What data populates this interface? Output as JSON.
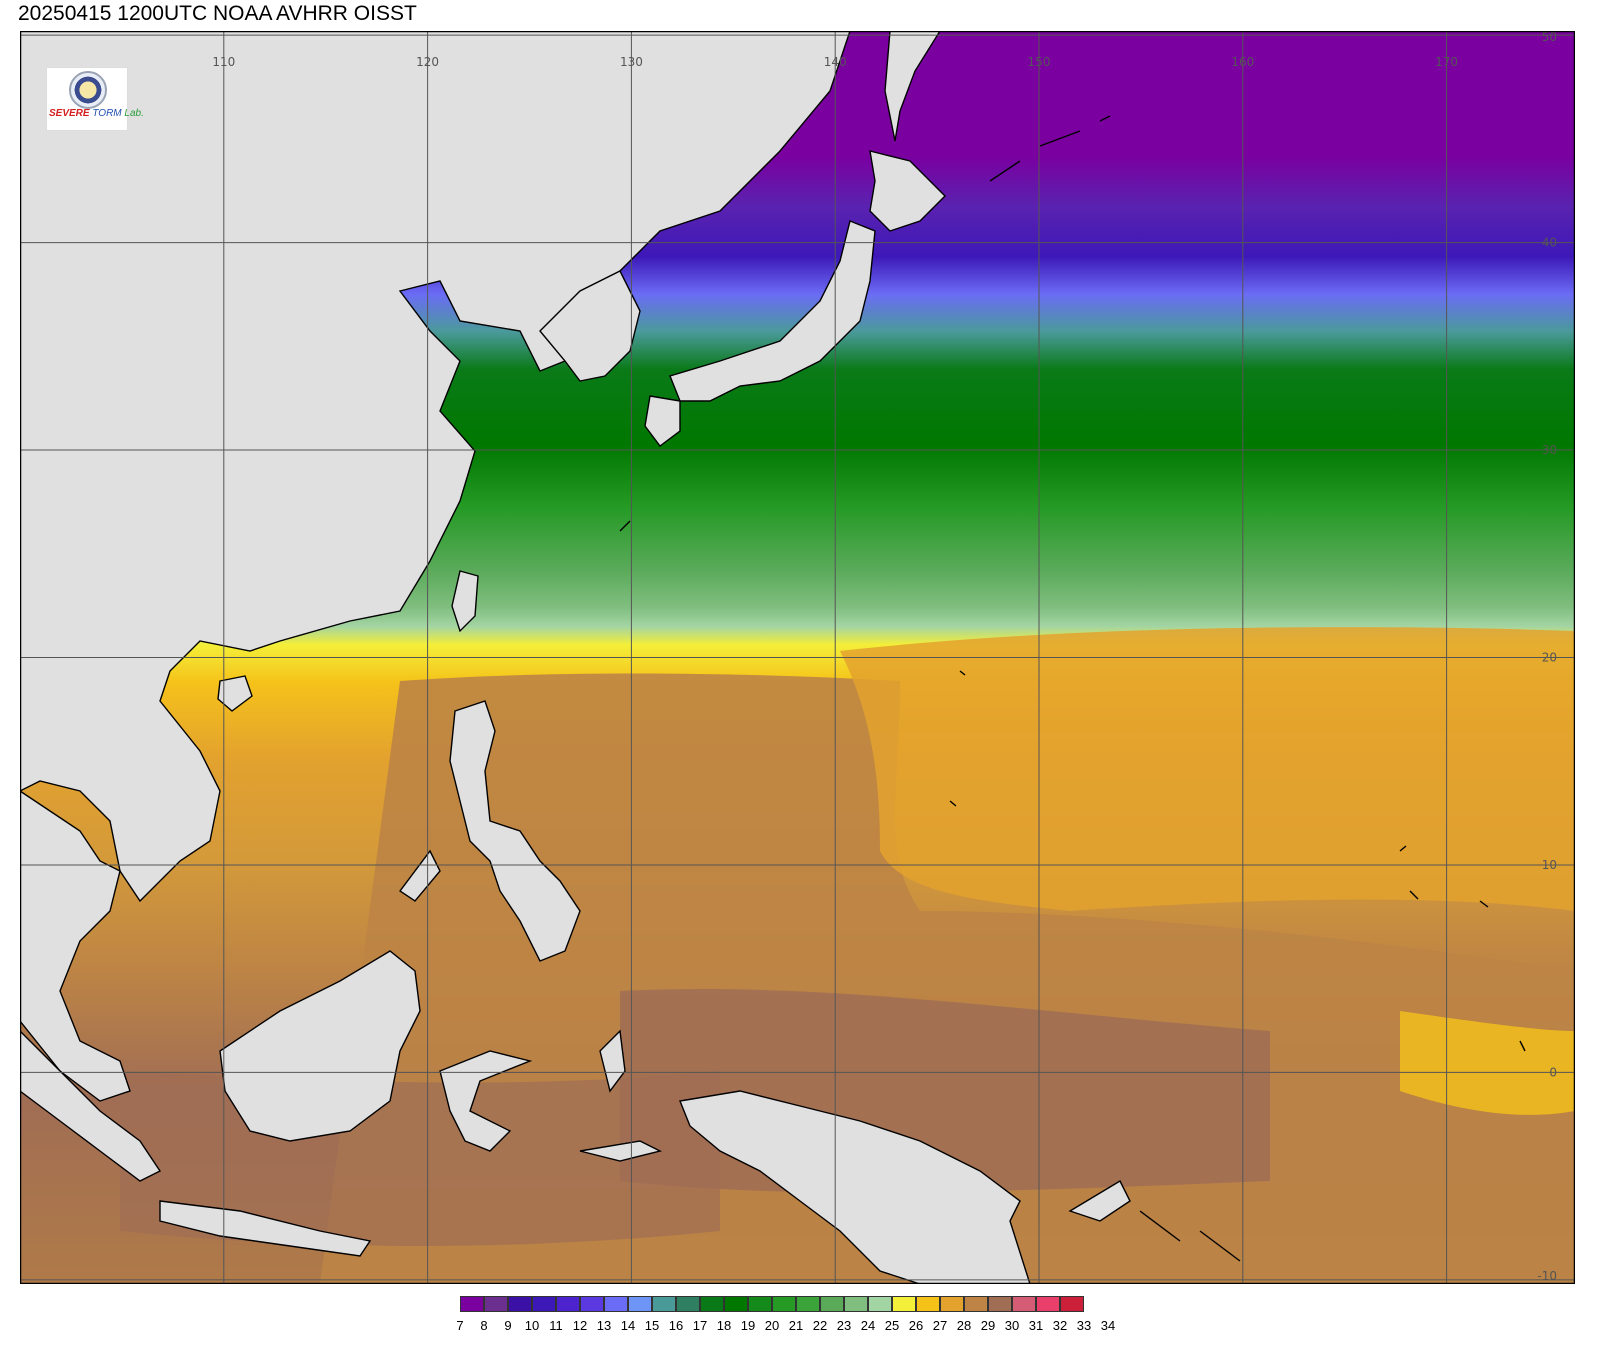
{
  "title": "20250415 1200UTC NOAA AVHRR OISST",
  "logo": {
    "text_parts": [
      "S",
      "EVERE",
      "TORM",
      "Lab."
    ]
  },
  "map": {
    "extent": {
      "lon_min": 100,
      "lon_max": 176.3,
      "lat_min": -10.2,
      "lat_max": 50.2
    },
    "lon_labels": [
      "110",
      "120",
      "130",
      "140",
      "150",
      "160",
      "170"
    ],
    "lat_labels": [
      "50",
      "40",
      "30",
      "20",
      "10",
      "0",
      "-10"
    ],
    "land_color": "#e0e0e0",
    "coast_color": "#000000",
    "grid_color": "#555555"
  },
  "colorbar": {
    "labels": [
      "7",
      "8",
      "9",
      "10",
      "11",
      "12",
      "13",
      "14",
      "15",
      "16",
      "17",
      "18",
      "19",
      "20",
      "21",
      "22",
      "23",
      "24",
      "25",
      "26",
      "27",
      "28",
      "29",
      "30",
      "31",
      "32",
      "33",
      "34"
    ],
    "colors": [
      "#7a00a0",
      "#6a2f8f",
      "#3a10a6",
      "#3d18b8",
      "#4d22cf",
      "#5a39e0",
      "#6b6cf5",
      "#6e94f5",
      "#4a9a9a",
      "#2e8060",
      "#0a7a18",
      "#007800",
      "#138a1a",
      "#259a25",
      "#3aa43a",
      "#5aaa5a",
      "#80be80",
      "#a3d4a3",
      "#f4ef38",
      "#f5c21a",
      "#e3a22e",
      "#bd8445",
      "#a06d55",
      "#d45c74",
      "#e8406a",
      "#cc1f3a"
    ]
  },
  "chart_data": {
    "type": "heatmap",
    "title": "20250415 1200UTC NOAA AVHRR OISST",
    "x_ticks": [
      110,
      120,
      130,
      140,
      150,
      160,
      170
    ],
    "y_ticks": [
      50,
      40,
      30,
      20,
      10,
      0,
      -10
    ],
    "legend_values": [
      7,
      8,
      9,
      10,
      11,
      12,
      13,
      14,
      15,
      16,
      17,
      18,
      19,
      20,
      21,
      22,
      23,
      24,
      25,
      26,
      27,
      28,
      29,
      30,
      31,
      32,
      33,
      34
    ],
    "sst_bands": [
      {
        "lat": 47,
        "sst": "7-8"
      },
      {
        "lat": 42,
        "sst": "9-11"
      },
      {
        "lat": 38,
        "sst": "13-15"
      },
      {
        "lat": 33,
        "sst": "17-19"
      },
      {
        "lat": 26,
        "sst": "21-24"
      },
      {
        "lat": 21,
        "sst": "26-27"
      },
      {
        "lat": 12,
        "sst": "28-29"
      },
      {
        "lat": 0,
        "sst": "29-31"
      }
    ]
  }
}
